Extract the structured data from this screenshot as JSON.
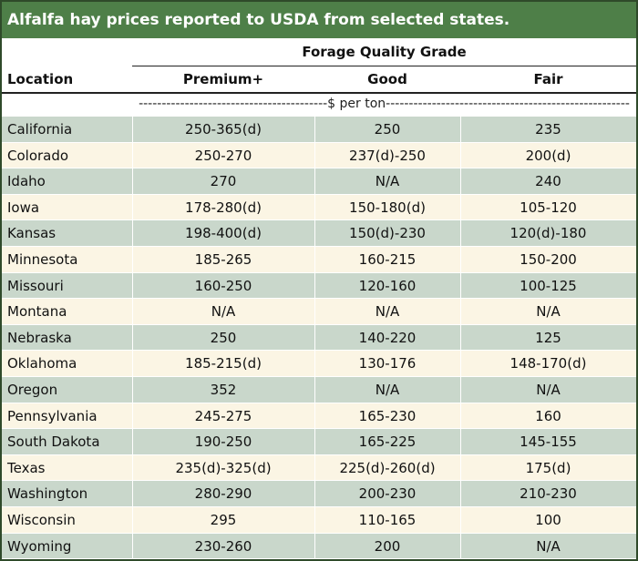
{
  "title": "Alfalfa hay prices reported to USDA from selected states.",
  "header": {
    "group_label": "Forage Quality Grade",
    "location_label": "Location",
    "columns": [
      "Premium+",
      "Good",
      "Fair"
    ],
    "unit_line": "-----------------------------------------$ per ton-----------------------------------------------------"
  },
  "rows": [
    {
      "location": "California",
      "premium": "250-365(d)",
      "good": "250",
      "fair": "235"
    },
    {
      "location": "Colorado",
      "premium": "250-270",
      "good": "237(d)-250",
      "fair": "200(d)"
    },
    {
      "location": "Idaho",
      "premium": "270",
      "good": "N/A",
      "fair": "240"
    },
    {
      "location": "Iowa",
      "premium": "178-280(d)",
      "good": "150-180(d)",
      "fair": "105-120"
    },
    {
      "location": "Kansas",
      "premium": "198-400(d)",
      "good": "150(d)-230",
      "fair": "120(d)-180"
    },
    {
      "location": "Minnesota",
      "premium": "185-265",
      "good": "160-215",
      "fair": "150-200"
    },
    {
      "location": "Missouri",
      "premium": "160-250",
      "good": "120-160",
      "fair": "100-125"
    },
    {
      "location": "Montana",
      "premium": "N/A",
      "good": "N/A",
      "fair": "N/A"
    },
    {
      "location": "Nebraska",
      "premium": "250",
      "good": "140-220",
      "fair": "125"
    },
    {
      "location": "Oklahoma",
      "premium": "185-215(d)",
      "good": "130-176",
      "fair": "148-170(d)"
    },
    {
      "location": "Oregon",
      "premium": "352",
      "good": "N/A",
      "fair": "N/A"
    },
    {
      "location": "Pennsylvania",
      "premium": "245-275",
      "good": "165-230",
      "fair": "160"
    },
    {
      "location": "South Dakota",
      "premium": "190-250",
      "good": "165-225",
      "fair": "145-155"
    },
    {
      "location": "Texas",
      "premium": "235(d)-325(d)",
      "good": "225(d)-260(d)",
      "fair": "175(d)"
    },
    {
      "location": "Washington",
      "premium": "280-290",
      "good": "200-230",
      "fair": "210-230"
    },
    {
      "location": "Wisconsin",
      "premium": "295",
      "good": "110-165",
      "fair": "100"
    },
    {
      "location": "Wyoming",
      "premium": "230-260",
      "good": "200",
      "fair": "N/A"
    }
  ]
}
